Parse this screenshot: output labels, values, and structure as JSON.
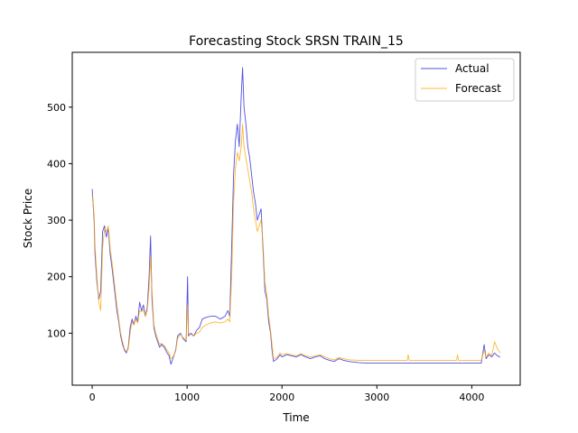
{
  "chart_data": {
    "type": "line",
    "title": "Forecasting Stock SRSN TRAIN_15",
    "xlabel": "Time",
    "ylabel": "Stock Price",
    "xlim": [
      -210,
      4510
    ],
    "ylim": [
      8,
      597
    ],
    "x_ticks": [
      0,
      1000,
      2000,
      3000,
      4000
    ],
    "y_ticks": [
      100,
      200,
      300,
      400,
      500
    ],
    "legend": "top-right",
    "grid": false,
    "series": [
      {
        "name": "Actual",
        "color": "#3333dd",
        "points": [
          [
            0,
            355
          ],
          [
            20,
            300
          ],
          [
            30,
            240
          ],
          [
            50,
            190
          ],
          [
            70,
            160
          ],
          [
            90,
            175
          ],
          [
            110,
            280
          ],
          [
            130,
            290
          ],
          [
            150,
            270
          ],
          [
            170,
            285
          ],
          [
            190,
            240
          ],
          [
            210,
            215
          ],
          [
            240,
            170
          ],
          [
            260,
            140
          ],
          [
            280,
            120
          ],
          [
            300,
            95
          ],
          [
            320,
            80
          ],
          [
            340,
            70
          ],
          [
            360,
            65
          ],
          [
            380,
            75
          ],
          [
            400,
            110
          ],
          [
            420,
            125
          ],
          [
            440,
            115
          ],
          [
            460,
            130
          ],
          [
            480,
            120
          ],
          [
            500,
            155
          ],
          [
            520,
            140
          ],
          [
            540,
            150
          ],
          [
            560,
            130
          ],
          [
            580,
            145
          ],
          [
            600,
            200
          ],
          [
            615,
            272
          ],
          [
            630,
            160
          ],
          [
            650,
            110
          ],
          [
            670,
            95
          ],
          [
            690,
            85
          ],
          [
            710,
            75
          ],
          [
            730,
            80
          ],
          [
            760,
            75
          ],
          [
            790,
            65
          ],
          [
            810,
            60
          ],
          [
            830,
            45
          ],
          [
            850,
            55
          ],
          [
            880,
            70
          ],
          [
            900,
            95
          ],
          [
            930,
            100
          ],
          [
            960,
            90
          ],
          [
            990,
            85
          ],
          [
            1005,
            200
          ],
          [
            1015,
            95
          ],
          [
            1040,
            100
          ],
          [
            1070,
            95
          ],
          [
            1100,
            105
          ],
          [
            1130,
            110
          ],
          [
            1160,
            125
          ],
          [
            1200,
            128
          ],
          [
            1250,
            130
          ],
          [
            1300,
            130
          ],
          [
            1350,
            125
          ],
          [
            1400,
            130
          ],
          [
            1430,
            140
          ],
          [
            1450,
            130
          ],
          [
            1470,
            250
          ],
          [
            1490,
            380
          ],
          [
            1510,
            440
          ],
          [
            1530,
            470
          ],
          [
            1550,
            430
          ],
          [
            1570,
            520
          ],
          [
            1585,
            570
          ],
          [
            1600,
            500
          ],
          [
            1620,
            470
          ],
          [
            1640,
            430
          ],
          [
            1660,
            410
          ],
          [
            1680,
            380
          ],
          [
            1700,
            350
          ],
          [
            1720,
            330
          ],
          [
            1740,
            300
          ],
          [
            1760,
            310
          ],
          [
            1780,
            320
          ],
          [
            1800,
            250
          ],
          [
            1820,
            175
          ],
          [
            1840,
            160
          ],
          [
            1860,
            120
          ],
          [
            1880,
            100
          ],
          [
            1895,
            70
          ],
          [
            1910,
            50
          ],
          [
            1950,
            55
          ],
          [
            1980,
            62
          ],
          [
            2000,
            58
          ],
          [
            2050,
            62
          ],
          [
            2100,
            60
          ],
          [
            2150,
            58
          ],
          [
            2200,
            62
          ],
          [
            2250,
            58
          ],
          [
            2300,
            55
          ],
          [
            2350,
            58
          ],
          [
            2400,
            60
          ],
          [
            2450,
            55
          ],
          [
            2500,
            52
          ],
          [
            2550,
            50
          ],
          [
            2600,
            55
          ],
          [
            2650,
            52
          ],
          [
            2700,
            50
          ],
          [
            2800,
            48
          ],
          [
            2900,
            47
          ],
          [
            3000,
            47
          ],
          [
            3200,
            47
          ],
          [
            3400,
            47
          ],
          [
            3600,
            47
          ],
          [
            3800,
            47
          ],
          [
            4000,
            47
          ],
          [
            4100,
            47
          ],
          [
            4130,
            80
          ],
          [
            4150,
            55
          ],
          [
            4180,
            62
          ],
          [
            4210,
            58
          ],
          [
            4240,
            65
          ],
          [
            4270,
            60
          ],
          [
            4300,
            58
          ]
        ]
      },
      {
        "name": "Forecast",
        "color": "#ffa500",
        "points": [
          [
            0,
            345
          ],
          [
            20,
            310
          ],
          [
            30,
            255
          ],
          [
            50,
            200
          ],
          [
            70,
            155
          ],
          [
            90,
            140
          ],
          [
            110,
            250
          ],
          [
            130,
            285
          ],
          [
            150,
            280
          ],
          [
            170,
            290
          ],
          [
            190,
            250
          ],
          [
            210,
            225
          ],
          [
            240,
            180
          ],
          [
            260,
            150
          ],
          [
            280,
            125
          ],
          [
            300,
            100
          ],
          [
            320,
            85
          ],
          [
            340,
            72
          ],
          [
            360,
            68
          ],
          [
            380,
            72
          ],
          [
            400,
            100
          ],
          [
            420,
            120
          ],
          [
            440,
            115
          ],
          [
            460,
            125
          ],
          [
            480,
            118
          ],
          [
            500,
            140
          ],
          [
            520,
            138
          ],
          [
            540,
            142
          ],
          [
            560,
            130
          ],
          [
            580,
            140
          ],
          [
            600,
            180
          ],
          [
            615,
            235
          ],
          [
            630,
            175
          ],
          [
            650,
            115
          ],
          [
            670,
            100
          ],
          [
            690,
            90
          ],
          [
            710,
            80
          ],
          [
            730,
            82
          ],
          [
            760,
            78
          ],
          [
            790,
            70
          ],
          [
            810,
            65
          ],
          [
            830,
            55
          ],
          [
            850,
            58
          ],
          [
            880,
            68
          ],
          [
            900,
            90
          ],
          [
            930,
            98
          ],
          [
            960,
            92
          ],
          [
            990,
            88
          ],
          [
            1005,
            150
          ],
          [
            1015,
            100
          ],
          [
            1040,
            98
          ],
          [
            1070,
            95
          ],
          [
            1100,
            100
          ],
          [
            1130,
            102
          ],
          [
            1160,
            110
          ],
          [
            1200,
            115
          ],
          [
            1250,
            118
          ],
          [
            1300,
            120
          ],
          [
            1350,
            118
          ],
          [
            1400,
            120
          ],
          [
            1430,
            125
          ],
          [
            1450,
            120
          ],
          [
            1470,
            200
          ],
          [
            1490,
            330
          ],
          [
            1510,
            390
          ],
          [
            1530,
            420
          ],
          [
            1550,
            405
          ],
          [
            1570,
            430
          ],
          [
            1585,
            470
          ],
          [
            1600,
            430
          ],
          [
            1620,
            410
          ],
          [
            1640,
            390
          ],
          [
            1660,
            370
          ],
          [
            1680,
            350
          ],
          [
            1700,
            320
          ],
          [
            1720,
            300
          ],
          [
            1740,
            280
          ],
          [
            1760,
            290
          ],
          [
            1780,
            300
          ],
          [
            1800,
            260
          ],
          [
            1820,
            190
          ],
          [
            1840,
            170
          ],
          [
            1860,
            130
          ],
          [
            1880,
            105
          ],
          [
            1895,
            80
          ],
          [
            1910,
            55
          ],
          [
            1950,
            58
          ],
          [
            1980,
            65
          ],
          [
            2000,
            62
          ],
          [
            2050,
            64
          ],
          [
            2100,
            62
          ],
          [
            2150,
            60
          ],
          [
            2200,
            64
          ],
          [
            2250,
            60
          ],
          [
            2300,
            58
          ],
          [
            2350,
            60
          ],
          [
            2400,
            62
          ],
          [
            2450,
            58
          ],
          [
            2500,
            55
          ],
          [
            2550,
            53
          ],
          [
            2600,
            57
          ],
          [
            2650,
            55
          ],
          [
            2700,
            53
          ],
          [
            2800,
            52
          ],
          [
            2900,
            52
          ],
          [
            3000,
            52
          ],
          [
            3200,
            52
          ],
          [
            3320,
            52
          ],
          [
            3330,
            62
          ],
          [
            3340,
            52
          ],
          [
            3400,
            52
          ],
          [
            3600,
            52
          ],
          [
            3800,
            52
          ],
          [
            3840,
            52
          ],
          [
            3850,
            62
          ],
          [
            3860,
            52
          ],
          [
            4000,
            52
          ],
          [
            4100,
            52
          ],
          [
            4130,
            70
          ],
          [
            4150,
            58
          ],
          [
            4180,
            65
          ],
          [
            4210,
            60
          ],
          [
            4240,
            85
          ],
          [
            4270,
            72
          ],
          [
            4300,
            65
          ]
        ]
      }
    ]
  }
}
